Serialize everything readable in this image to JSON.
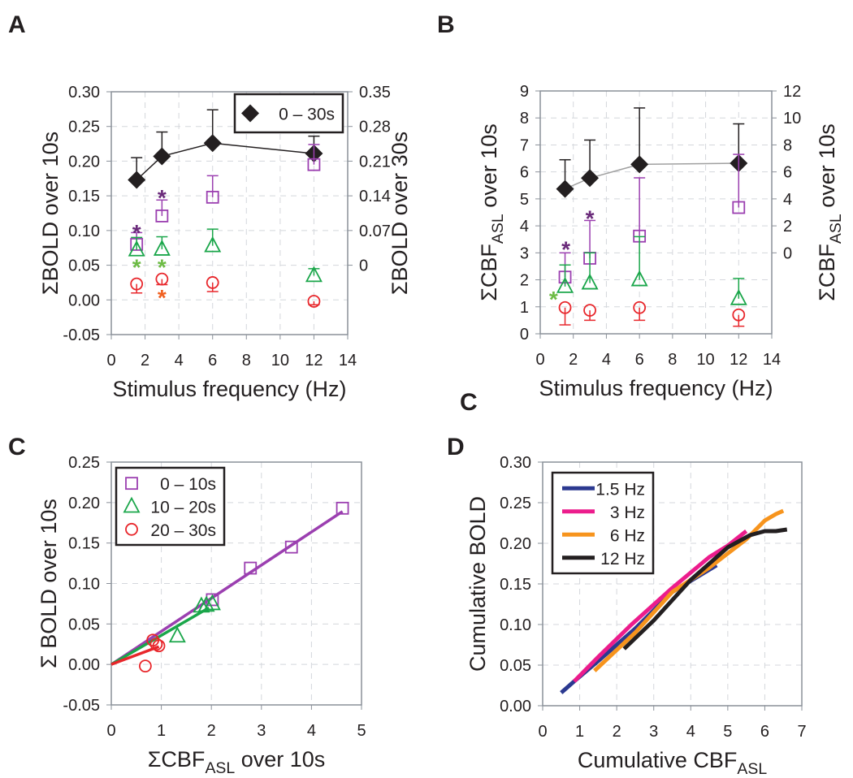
{
  "panel_labels": {
    "a": "A",
    "b": "B",
    "c": "C",
    "d": "D",
    "stray": "C"
  },
  "colors": {
    "purple": "#9b3fb0",
    "purple_star": "#6a2a7a",
    "green": "#1aa64a",
    "green_star": "#6dbb45",
    "red": "#e8262b",
    "red_star": "#f06020",
    "black": "#231f20",
    "blue": "#2b3990",
    "pink": "#ec1c8c",
    "orange": "#f7941d"
  },
  "chart_data": [
    {
      "id": "A",
      "type": "scatter",
      "xlabel": "Stimulus frequency (Hz)",
      "ylabel": {
        "pre": "ΣBOLD over 10s",
        "sub": "",
        "post": ""
      },
      "ylabel_right": {
        "pre": "ΣBOLD over 30s",
        "sub": "",
        "post": ""
      },
      "xlim": [
        0,
        14
      ],
      "ylim": [
        -0.05,
        0.3
      ],
      "xticks": [
        "0",
        "2",
        "4",
        "6",
        "8",
        "10",
        "12",
        "14"
      ],
      "yticks": [
        "-0.05",
        "0.00",
        "0.05",
        "0.10",
        "0.15",
        "0.20",
        "0.25",
        "0.30"
      ],
      "yticks_right": [
        "0",
        "0.07",
        "0.14",
        "0.21",
        "0.28",
        "0.35"
      ],
      "grid": true,
      "legend": {
        "placement": "top-right",
        "entries": [
          {
            "label": "0 – 30s",
            "marker": "diamond",
            "color": "black"
          }
        ]
      },
      "series": [
        {
          "name": "0 – 30s",
          "marker": "diamond",
          "color": "black",
          "line": "#231f20",
          "x": [
            1.5,
            3,
            6,
            12
          ],
          "y": [
            0.173,
            0.207,
            0.226,
            0.211
          ],
          "err_to": [
            0.205,
            0.242,
            0.274,
            0.236
          ]
        },
        {
          "name": "0 – 10s",
          "marker": "square",
          "color": "purple",
          "x": [
            1.5,
            3,
            6,
            12
          ],
          "y": [
            0.08,
            0.121,
            0.148,
            0.195
          ],
          "err_to": [
            0.097,
            0.144,
            0.179,
            0.224
          ]
        },
        {
          "name": "10 – 20s",
          "marker": "triangle",
          "color": "green",
          "x": [
            1.5,
            3,
            6,
            12
          ],
          "y": [
            0.072,
            0.073,
            0.078,
            0.035
          ],
          "err_to": [
            0.09,
            0.091,
            0.102,
            0.045
          ]
        },
        {
          "name": "20 – 30s",
          "marker": "circle",
          "color": "red",
          "x": [
            1.5,
            3,
            6,
            12
          ],
          "y": [
            0.023,
            0.03,
            0.025,
            -0.002
          ],
          "err_to": [
            0.01,
            0.022,
            0.012,
            -0.007
          ]
        }
      ],
      "annotations": [
        {
          "text": "*",
          "x": 1.5,
          "y": 0.1,
          "color": "purple_star"
        },
        {
          "text": "*",
          "x": 3,
          "y": 0.15,
          "color": "purple_star"
        },
        {
          "text": "*",
          "x": 1.5,
          "y": 0.05,
          "color": "green_star"
        },
        {
          "text": "*",
          "x": 3,
          "y": 0.05,
          "color": "green_star"
        },
        {
          "text": "*",
          "x": 3,
          "y": 0.006,
          "color": "red_star"
        }
      ]
    },
    {
      "id": "B",
      "type": "scatter",
      "xlabel": "Stimulus frequency (Hz)",
      "ylabel": {
        "pre": "ΣCBF",
        "sub": "ASL",
        "post": " over 10s"
      },
      "ylabel_right": {
        "pre": "ΣCBF",
        "sub": "ASL",
        "post": " over 10s"
      },
      "xlim": [
        0,
        14
      ],
      "ylim": [
        0,
        9
      ],
      "xticks": [
        "0",
        "2",
        "4",
        "6",
        "8",
        "10",
        "12",
        "14"
      ],
      "yticks": [
        "0",
        "1",
        "2",
        "3",
        "4",
        "5",
        "6",
        "7",
        "8",
        "9"
      ],
      "yticks_right": [
        "0",
        "2",
        "4",
        "6",
        "8",
        "10",
        "12"
      ],
      "grid": true,
      "series": [
        {
          "name": "0 – 30s",
          "marker": "diamond",
          "color": "black",
          "line": "#a0a0a0",
          "x": [
            1.5,
            3,
            6,
            12
          ],
          "y": [
            5.37,
            5.77,
            6.28,
            6.32
          ],
          "err_to": [
            6.45,
            7.18,
            8.37,
            7.78
          ]
        },
        {
          "name": "0 – 10s",
          "marker": "square",
          "color": "purple",
          "x": [
            1.5,
            3,
            6,
            12
          ],
          "y": [
            2.1,
            2.8,
            3.62,
            4.68
          ],
          "err_to": [
            3.0,
            4.2,
            5.78,
            6.65
          ]
        },
        {
          "name": "10 – 20s",
          "marker": "triangle",
          "color": "green",
          "x": [
            1.5,
            3,
            6,
            12
          ],
          "y": [
            1.75,
            1.88,
            2.0,
            1.3
          ],
          "err_to": [
            2.55,
            3.0,
            3.6,
            2.05
          ]
        },
        {
          "name": "20 – 30s",
          "marker": "circle",
          "color": "red",
          "x": [
            1.5,
            3,
            6,
            12
          ],
          "y": [
            0.97,
            0.87,
            0.97,
            0.7
          ],
          "err_to": [
            0.33,
            0.5,
            0.5,
            0.28
          ]
        }
      ],
      "annotations": [
        {
          "text": "*",
          "x": 1.55,
          "y": 3.2,
          "color": "purple_star"
        },
        {
          "text": "*",
          "x": 3.0,
          "y": 4.35,
          "color": "purple_star"
        },
        {
          "text": "*",
          "x": 0.8,
          "y": 1.35,
          "color": "green_star"
        }
      ]
    },
    {
      "id": "C",
      "type": "scatter",
      "xlabel": {
        "pre": "ΣCBF",
        "sub": "ASL",
        "post": " over 10s"
      },
      "ylabel": {
        "pre": "Σ BOLD over 10s",
        "sub": "",
        "post": ""
      },
      "xlim": [
        0,
        5
      ],
      "ylim": [
        -0.05,
        0.25
      ],
      "xticks": [
        "0",
        "1",
        "2",
        "3",
        "4",
        "5"
      ],
      "yticks": [
        "-0.05",
        "0.00",
        "0.05",
        "0.10",
        "0.15",
        "0.20",
        "0.25"
      ],
      "grid": true,
      "legend": {
        "placement": "top-left",
        "entries": [
          {
            "label": "0 – 10s",
            "marker": "square",
            "color": "purple"
          },
          {
            "label": "10 – 20s",
            "marker": "triangle",
            "color": "green"
          },
          {
            "label": "20 – 30s",
            "marker": "circle",
            "color": "red"
          }
        ]
      },
      "fits": [
        {
          "name": "0 – 10s fit",
          "color": "purple",
          "x": [
            0,
            4.62
          ],
          "y": [
            0,
            0.189
          ]
        },
        {
          "name": "10 – 20s fit",
          "color": "green",
          "x": [
            0,
            1.95
          ],
          "y": [
            0,
            0.07
          ]
        },
        {
          "name": "20 – 30s fit",
          "color": "red",
          "x": [
            0,
            0.95
          ],
          "y": [
            0,
            0.022
          ]
        }
      ],
      "series": [
        {
          "name": "0 – 10s",
          "marker": "square",
          "color": "purple",
          "x": [
            2.02,
            2.78,
            3.6,
            4.62
          ],
          "y": [
            0.08,
            0.119,
            0.145,
            0.193
          ]
        },
        {
          "name": "10 – 20s",
          "marker": "triangle",
          "color": "green",
          "x": [
            1.8,
            1.9,
            2.02,
            1.32
          ],
          "y": [
            0.072,
            0.073,
            0.075,
            0.035
          ]
        },
        {
          "name": "20 – 30s",
          "marker": "circle",
          "color": "red",
          "x": [
            0.83,
            0.9,
            0.95,
            0.68
          ],
          "y": [
            0.03,
            0.025,
            0.023,
            -0.002
          ]
        }
      ]
    },
    {
      "id": "D",
      "type": "line",
      "xlabel": {
        "pre": "Cumulative  CBF",
        "sub": "ASL",
        "post": ""
      },
      "ylabel": {
        "pre": "Cumulative BOLD",
        "sub": "",
        "post": ""
      },
      "xlim": [
        0,
        7
      ],
      "ylim": [
        0,
        0.3
      ],
      "xticks": [
        "0",
        "1",
        "2",
        "3",
        "4",
        "5",
        "6",
        "7"
      ],
      "yticks": [
        "0.00",
        "0.05",
        "0.10",
        "0.15",
        "0.20",
        "0.25",
        "0.30"
      ],
      "grid": true,
      "legend": {
        "placement": "top-left",
        "entries": [
          {
            "label": "1.5 Hz",
            "color": "blue"
          },
          {
            "label": "3  Hz",
            "color": "pink"
          },
          {
            "label": "6  Hz",
            "color": "orange"
          },
          {
            "label": "12 Hz",
            "color": "black"
          }
        ]
      },
      "series": [
        {
          "name": "1.5 Hz",
          "color": "blue",
          "x": [
            0.5,
            0.85,
            1.5,
            2.5,
            3.5,
            4.7
          ],
          "y": [
            0.016,
            0.03,
            0.055,
            0.095,
            0.14,
            0.173
          ]
        },
        {
          "name": "3 Hz",
          "color": "pink",
          "x": [
            0.85,
            1.5,
            2.4,
            3.5,
            4.5,
            5.0,
            5.5
          ],
          "y": [
            0.03,
            0.06,
            0.1,
            0.145,
            0.183,
            0.197,
            0.215
          ]
        },
        {
          "name": "6 Hz",
          "color": "orange",
          "x": [
            1.4,
            2.5,
            3.5,
            4.5,
            5.5,
            6.0,
            6.3,
            6.5
          ],
          "y": [
            0.043,
            0.09,
            0.14,
            0.17,
            0.205,
            0.228,
            0.236,
            0.24
          ]
        },
        {
          "name": "12 Hz",
          "color": "black",
          "x": [
            2.2,
            3.0,
            4.0,
            5.0,
            5.6,
            6.0,
            6.3,
            6.6
          ],
          "y": [
            0.07,
            0.105,
            0.155,
            0.195,
            0.21,
            0.215,
            0.215,
            0.217
          ]
        }
      ]
    }
  ]
}
